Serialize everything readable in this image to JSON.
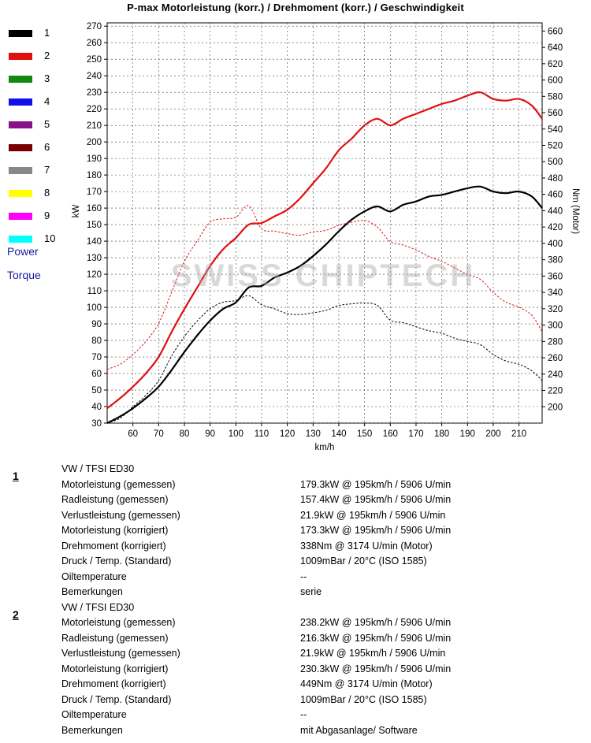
{
  "title": "P-max Motorleistung (korr.) / Drehmoment (korr.) / Geschwindigkeit",
  "watermark": "SWISS CHIPTECH",
  "legend": {
    "items": [
      {
        "label": "1",
        "color": "#000000"
      },
      {
        "label": "2",
        "color": "#e01010"
      },
      {
        "label": "3",
        "color": "#118811"
      },
      {
        "label": "4",
        "color": "#1010ee"
      },
      {
        "label": "5",
        "color": "#881188"
      },
      {
        "label": "6",
        "color": "#770000"
      },
      {
        "label": "7",
        "color": "#888888"
      },
      {
        "label": "8",
        "color": "#ffff00"
      },
      {
        "label": "9",
        "color": "#ff00ff"
      },
      {
        "label": "10",
        "color": "#00ffff"
      }
    ],
    "power_label": "Power",
    "torque_label": "Torque"
  },
  "chart_data": {
    "type": "line",
    "title": "P-max Motorleistung (korr.) / Drehmoment (korr.) / Geschwindigkeit",
    "xlabel": "km/h",
    "ylabel": "kW",
    "y2label": "Nm (Motor)",
    "xlim": [
      50,
      219
    ],
    "ylim": [
      30,
      272
    ],
    "y2lim": [
      180,
      670
    ],
    "x_ticks": [
      60,
      70,
      80,
      90,
      100,
      110,
      120,
      130,
      140,
      150,
      160,
      170,
      180,
      190,
      200,
      210
    ],
    "y_ticks": [
      30,
      40,
      50,
      60,
      70,
      80,
      90,
      100,
      110,
      120,
      130,
      140,
      150,
      160,
      170,
      180,
      190,
      200,
      210,
      220,
      230,
      240,
      250,
      260,
      270
    ],
    "y2_ticks": [
      200,
      220,
      240,
      260,
      280,
      300,
      320,
      340,
      360,
      380,
      400,
      420,
      440,
      460,
      480,
      500,
      520,
      540,
      560,
      580,
      600,
      620,
      640,
      660
    ],
    "grid": true,
    "series": [
      {
        "name": "1",
        "axis": "left",
        "color": "#000000",
        "style": "solid",
        "width": 2.2,
        "x": [
          50,
          55,
          60,
          65,
          70,
          75,
          80,
          85,
          90,
          95,
          100,
          105,
          110,
          115,
          120,
          125,
          130,
          135,
          140,
          145,
          150,
          155,
          160,
          165,
          170,
          175,
          180,
          185,
          190,
          195,
          200,
          205,
          210,
          215,
          219
        ],
        "y": [
          30,
          34,
          39,
          45,
          52,
          62,
          73,
          83,
          92,
          99,
          103,
          112,
          113,
          118,
          121,
          125,
          131,
          138,
          146,
          153,
          158,
          161,
          158,
          162,
          164,
          167,
          168,
          170,
          172,
          173,
          170,
          169,
          170,
          167,
          160
        ]
      },
      {
        "name": "2",
        "axis": "left",
        "color": "#e01010",
        "style": "solid",
        "width": 2.2,
        "x": [
          50,
          55,
          60,
          65,
          70,
          75,
          80,
          85,
          90,
          95,
          100,
          105,
          110,
          115,
          120,
          125,
          130,
          135,
          140,
          145,
          150,
          155,
          160,
          165,
          170,
          175,
          180,
          185,
          190,
          195,
          200,
          205,
          210,
          215,
          219
        ],
        "y": [
          39,
          45,
          52,
          60,
          70,
          85,
          99,
          112,
          125,
          135,
          142,
          150,
          151,
          155,
          159,
          166,
          175,
          184,
          195,
          202,
          210,
          214,
          210,
          214,
          217,
          220,
          223,
          225,
          228,
          230,
          226,
          225,
          226,
          222,
          214
        ]
      },
      {
        "name": "1",
        "axis": "right",
        "color": "#000000",
        "style": "dashed",
        "width": 1,
        "x": [
          50,
          55,
          60,
          65,
          70,
          75,
          80,
          85,
          90,
          95,
          100,
          105,
          110,
          115,
          120,
          125,
          130,
          135,
          140,
          145,
          150,
          155,
          160,
          165,
          170,
          175,
          180,
          185,
          190,
          195,
          200,
          205,
          210,
          215,
          219
        ],
        "y": [
          180,
          186,
          200,
          214,
          232,
          262,
          286,
          305,
          320,
          328,
          330,
          336,
          325,
          320,
          314,
          313,
          315,
          318,
          324,
          326,
          327,
          324,
          306,
          303,
          298,
          293,
          290,
          284,
          280,
          276,
          264,
          256,
          252,
          244,
          232
        ]
      },
      {
        "name": "2",
        "axis": "right",
        "color": "#e01010",
        "style": "dashed",
        "width": 1,
        "x": [
          50,
          55,
          60,
          65,
          70,
          75,
          80,
          85,
          90,
          95,
          100,
          105,
          110,
          115,
          120,
          125,
          130,
          135,
          140,
          145,
          150,
          155,
          160,
          165,
          170,
          175,
          180,
          185,
          190,
          195,
          200,
          205,
          210,
          215,
          219
        ],
        "y": [
          246,
          252,
          264,
          280,
          302,
          340,
          378,
          403,
          426,
          430,
          432,
          446,
          418,
          415,
          412,
          410,
          414,
          416,
          422,
          426,
          428,
          420,
          402,
          398,
          392,
          384,
          378,
          370,
          362,
          356,
          340,
          328,
          322,
          312,
          292
        ]
      }
    ]
  },
  "results": [
    {
      "number": "1",
      "vehicle": "VW / TFSI ED30",
      "rows": [
        {
          "label": "Motorleistung (gemessen)",
          "value": "179.3kW @ 195km/h / 5906 U/min"
        },
        {
          "label": "Radleistung (gemessen)",
          "value": "157.4kW @ 195km/h / 5906 U/min"
        },
        {
          "label": "Verlustleistung (gemessen)",
          "value": "21.9kW @ 195km/h / 5906 U/min"
        },
        {
          "label": "Motorleistung (korrigiert)",
          "value": "173.3kW @ 195km/h / 5906 U/min"
        },
        {
          "label": "Drehmoment (korrigiert)",
          "value": "338Nm @ 3174 U/min (Motor)"
        },
        {
          "label": "Druck / Temp. (Standard)",
          "value": "1009mBar / 20°C   (ISO 1585)"
        },
        {
          "label": "Oiltemperature",
          "value": "--"
        },
        {
          "label": "Bemerkungen",
          "value": "serie"
        }
      ]
    },
    {
      "number": "2",
      "vehicle": "VW / TFSI ED30",
      "rows": [
        {
          "label": "Motorleistung (gemessen)",
          "value": "238.2kW @ 195km/h / 5906 U/min"
        },
        {
          "label": "Radleistung (gemessen)",
          "value": "216.3kW @ 195km/h / 5906 U/min"
        },
        {
          "label": "Verlustleistung (gemessen)",
          "value": "21.9kW @ 195km/h / 5906 U/min"
        },
        {
          "label": "Motorleistung (korrigiert)",
          "value": "230.3kW @ 195km/h / 5906 U/min"
        },
        {
          "label": "Drehmoment (korrigiert)",
          "value": "449Nm @ 3174 U/min (Motor)"
        },
        {
          "label": "Druck / Temp. (Standard)",
          "value": "1009mBar / 20°C   (ISO 1585)"
        },
        {
          "label": "Oiltemperature",
          "value": "--"
        },
        {
          "label": "Bemerkungen",
          "value": "mit Abgasanlage/ Software"
        }
      ]
    }
  ]
}
